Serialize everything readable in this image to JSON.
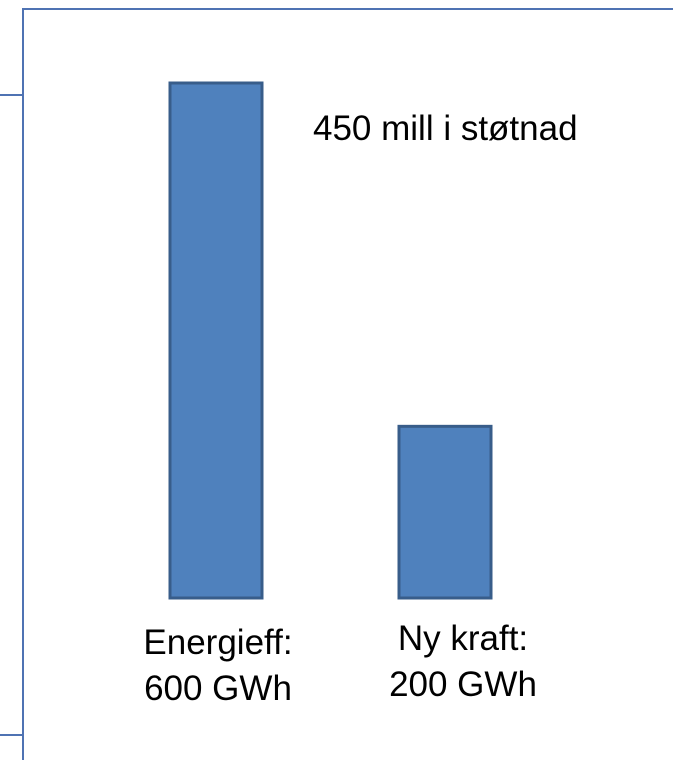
{
  "chart_data": {
    "type": "bar",
    "categories": [
      "Energieff:",
      "Ny kraft:"
    ],
    "category_values_text": [
      "600 GWh",
      "200 GWh"
    ],
    "values": [
      600,
      200
    ],
    "unit": "GWh",
    "annotation": "450 mill i støtnad",
    "title": "",
    "xlabel": "",
    "ylabel": "",
    "ylim": [
      0,
      620
    ],
    "grid": false,
    "legend": "none",
    "bar_color": "#4f81bd",
    "bar_border_color": "#385d8a"
  }
}
